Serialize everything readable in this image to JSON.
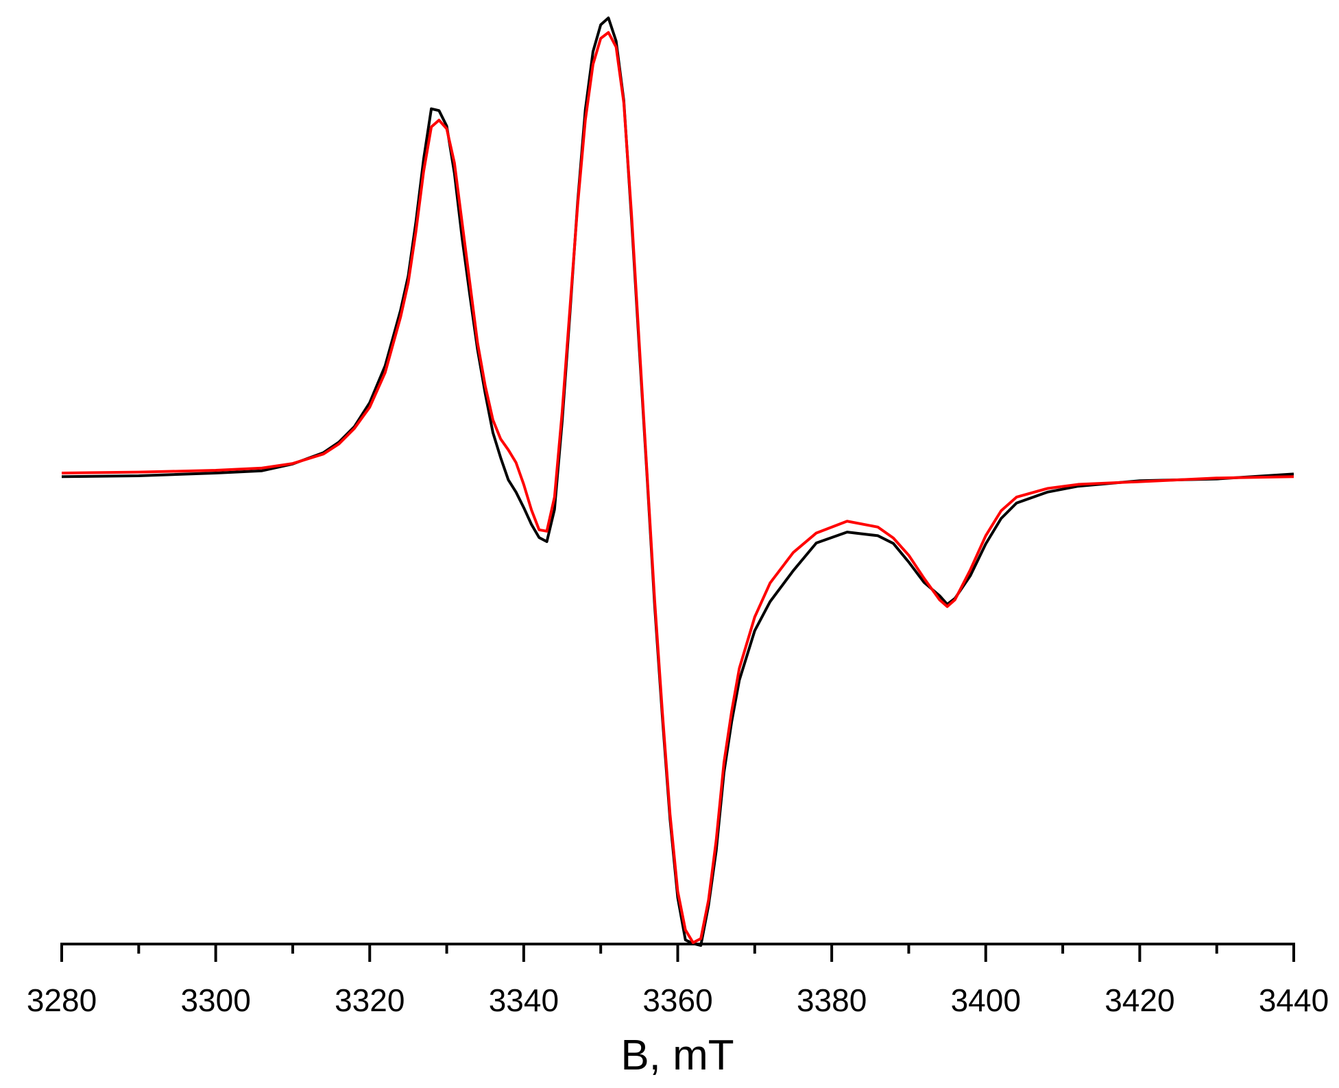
{
  "chart_data": {
    "type": "line",
    "xlabel": "B, mT",
    "x": [
      3280,
      3290,
      3300,
      3306,
      3310,
      3314,
      3316,
      3318,
      3320,
      3322,
      3324,
      3325,
      3326,
      3327,
      3328,
      3329,
      3330,
      3331,
      3332,
      3333,
      3334,
      3335,
      3336,
      3337,
      3338,
      3339,
      3340,
      3341,
      3342,
      3343,
      3344,
      3345,
      3346,
      3347,
      3348,
      3349,
      3350,
      3351,
      3352,
      3353,
      3354,
      3355,
      3356,
      3357,
      3358,
      3359,
      3360,
      3361,
      3362,
      3363,
      3364,
      3365,
      3366,
      3367,
      3368,
      3370,
      3372,
      3375,
      3378,
      3382,
      3386,
      3388,
      3390,
      3392,
      3394,
      3395,
      3396,
      3398,
      3400,
      3402,
      3404,
      3408,
      3412,
      3420,
      3430,
      3440
    ],
    "series": [
      {
        "color": "#000000",
        "values": [
          -0.8,
          -0.6,
          0,
          0.5,
          2.0,
          4.5,
          6.8,
          10.2,
          15.5,
          23.6,
          35.8,
          43.4,
          55.3,
          69.1,
          80.2,
          79.8,
          76.4,
          66.0,
          51.7,
          39.2,
          27.2,
          17.5,
          8.9,
          3.4,
          -1.5,
          -4.2,
          -7.6,
          -11.3,
          -14.2,
          -15.1,
          -8.0,
          11.5,
          35.0,
          59.6,
          80.0,
          92.8,
          98.7,
          100.2,
          95.1,
          82.0,
          55.9,
          27.6,
          -0.2,
          -29.1,
          -53.6,
          -76.2,
          -93.5,
          -102.8,
          -103.6,
          -104.0,
          -95.2,
          -83.1,
          -66.0,
          -54.8,
          -45.6,
          -34.7,
          -28.3,
          -21.5,
          -15.4,
          -13.0,
          -13.8,
          -15.5,
          -19.6,
          -24.1,
          -27.0,
          -28.9,
          -27.6,
          -22.6,
          -15.6,
          -10.0,
          -6.6,
          -4.2,
          -2.9,
          -1.7,
          -1.3,
          -0.2
        ]
      },
      {
        "color": "#ff0000",
        "values": [
          0,
          0.2,
          0.6,
          1.1,
          2.1,
          4.2,
          6.4,
          9.8,
          14.5,
          22.1,
          34.3,
          41.9,
          53.2,
          66.4,
          76.2,
          77.7,
          75.8,
          68.3,
          55.1,
          41.9,
          28.7,
          19.2,
          11.7,
          7.5,
          5.1,
          2.3,
          -2.5,
          -8.1,
          -12.5,
          -12.8,
          -5.3,
          13.6,
          36.2,
          58.9,
          77.7,
          90.0,
          95.7,
          97.0,
          93.8,
          81.5,
          57.0,
          28.7,
          0.4,
          -27.9,
          -52.5,
          -75.1,
          -92.1,
          -100.6,
          -103.4,
          -102.5,
          -94.0,
          -80.8,
          -63.8,
          -52.5,
          -43.0,
          -31.7,
          -24.2,
          -17.5,
          -13.2,
          -10.6,
          -11.9,
          -14.3,
          -18.1,
          -23.2,
          -27.9,
          -29.4,
          -27.9,
          -21.3,
          -13.8,
          -8.3,
          -5.3,
          -3.4,
          -2.5,
          -1.9,
          -1.1,
          -0.8
        ]
      }
    ],
    "xlim": [
      3280,
      3440
    ],
    "xticks": [
      3280,
      3300,
      3320,
      3340,
      3360,
      3380,
      3400,
      3420,
      3440
    ],
    "xminorticks": [
      3290,
      3310,
      3330,
      3350,
      3370,
      3390,
      3410,
      3430
    ],
    "ylim": [
      -104,
      104
    ]
  }
}
